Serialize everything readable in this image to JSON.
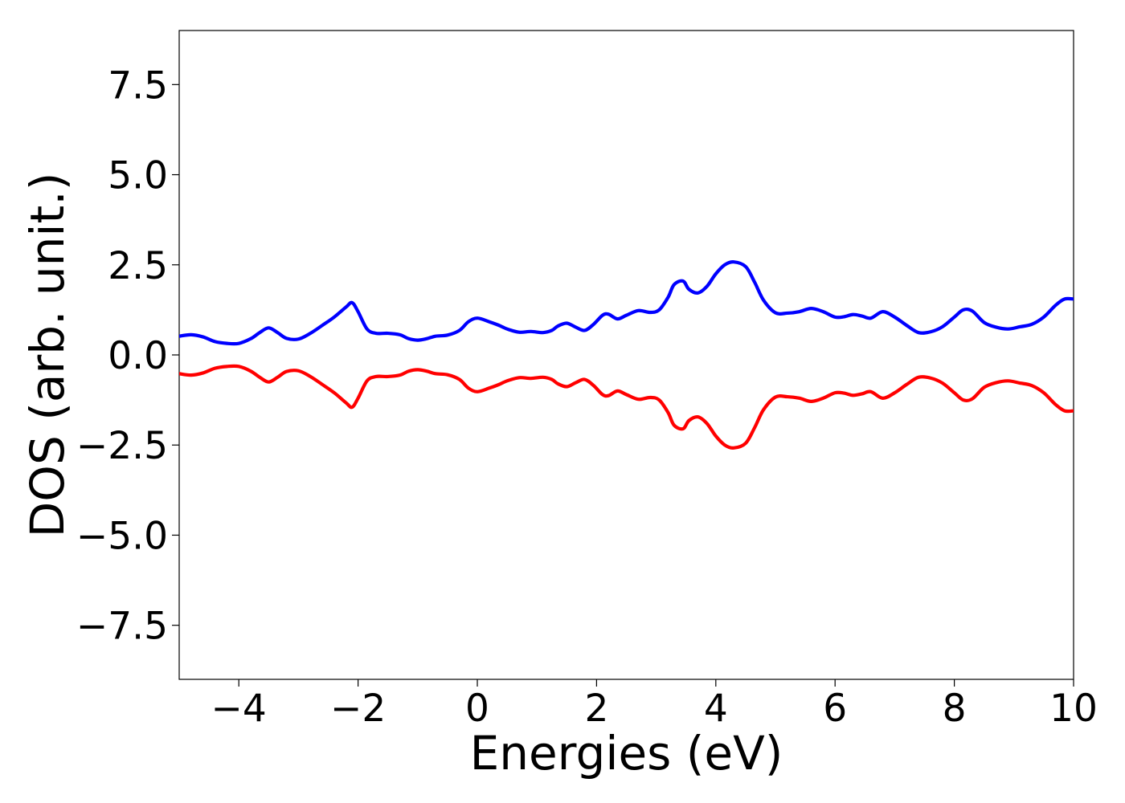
{
  "chart_data": {
    "type": "line",
    "title": "",
    "xlabel": "Energies (eV)",
    "ylabel": "DOS (arb. unit.)",
    "xlim": [
      -5,
      10
    ],
    "ylim": [
      -9,
      9
    ],
    "xticks": [
      -4,
      -2,
      0,
      2,
      4,
      6,
      8,
      10
    ],
    "xtick_labels": [
      "−4",
      "−2",
      "0",
      "2",
      "4",
      "6",
      "8",
      "10"
    ],
    "yticks": [
      -7.5,
      -5.0,
      -2.5,
      0.0,
      2.5,
      5.0,
      7.5
    ],
    "ytick_labels": [
      "−7.5",
      "−5.0",
      "−2.5",
      "0.0",
      "2.5",
      "5.0",
      "7.5"
    ],
    "grid": false,
    "legend": "none",
    "series": [
      {
        "color": "#0000ff",
        "x": [
          -5.0,
          -4.8,
          -4.6,
          -4.4,
          -4.2,
          -4.0,
          -3.8,
          -3.65,
          -3.5,
          -3.35,
          -3.2,
          -3.0,
          -2.8,
          -2.6,
          -2.4,
          -2.2,
          -2.1,
          -2.0,
          -1.85,
          -1.7,
          -1.5,
          -1.3,
          -1.15,
          -1.0,
          -0.85,
          -0.7,
          -0.5,
          -0.3,
          -0.15,
          0.0,
          0.2,
          0.35,
          0.5,
          0.7,
          0.9,
          1.1,
          1.25,
          1.35,
          1.5,
          1.65,
          1.8,
          1.95,
          2.1,
          2.2,
          2.35,
          2.5,
          2.7,
          2.9,
          3.05,
          3.2,
          3.3,
          3.45,
          3.55,
          3.7,
          3.85,
          4.0,
          4.15,
          4.3,
          4.5,
          4.65,
          4.8,
          5.0,
          5.2,
          5.4,
          5.6,
          5.8,
          6.0,
          6.15,
          6.3,
          6.45,
          6.6,
          6.8,
          7.0,
          7.2,
          7.4,
          7.6,
          7.8,
          8.0,
          8.15,
          8.3,
          8.5,
          8.7,
          8.9,
          9.1,
          9.3,
          9.5,
          9.7,
          9.85,
          10.0
        ],
        "y": [
          0.52,
          0.56,
          0.5,
          0.37,
          0.32,
          0.32,
          0.45,
          0.62,
          0.75,
          0.62,
          0.46,
          0.44,
          0.6,
          0.82,
          1.05,
          1.33,
          1.45,
          1.2,
          0.72,
          0.6,
          0.6,
          0.56,
          0.45,
          0.41,
          0.45,
          0.52,
          0.55,
          0.68,
          0.92,
          1.02,
          0.92,
          0.83,
          0.72,
          0.63,
          0.65,
          0.62,
          0.68,
          0.8,
          0.88,
          0.77,
          0.68,
          0.85,
          1.1,
          1.13,
          1.0,
          1.1,
          1.23,
          1.18,
          1.25,
          1.6,
          1.95,
          2.05,
          1.82,
          1.72,
          1.9,
          2.25,
          2.5,
          2.58,
          2.45,
          2.02,
          1.52,
          1.17,
          1.16,
          1.2,
          1.29,
          1.2,
          1.05,
          1.06,
          1.12,
          1.08,
          1.02,
          1.2,
          1.05,
          0.82,
          0.62,
          0.64,
          0.78,
          1.05,
          1.25,
          1.22,
          0.9,
          0.77,
          0.72,
          0.78,
          0.85,
          1.05,
          1.38,
          1.55,
          1.55
        ]
      },
      {
        "color": "#ff0000",
        "x": [
          -5.0,
          -4.8,
          -4.6,
          -4.4,
          -4.2,
          -4.0,
          -3.8,
          -3.65,
          -3.5,
          -3.35,
          -3.2,
          -3.0,
          -2.8,
          -2.6,
          -2.4,
          -2.2,
          -2.1,
          -2.0,
          -1.85,
          -1.7,
          -1.5,
          -1.3,
          -1.15,
          -1.0,
          -0.85,
          -0.7,
          -0.5,
          -0.3,
          -0.15,
          0.0,
          0.2,
          0.35,
          0.5,
          0.7,
          0.9,
          1.1,
          1.25,
          1.35,
          1.5,
          1.65,
          1.8,
          1.95,
          2.1,
          2.2,
          2.35,
          2.5,
          2.7,
          2.9,
          3.05,
          3.2,
          3.3,
          3.45,
          3.55,
          3.7,
          3.85,
          4.0,
          4.15,
          4.3,
          4.5,
          4.65,
          4.8,
          5.0,
          5.2,
          5.4,
          5.6,
          5.8,
          6.0,
          6.15,
          6.3,
          6.45,
          6.6,
          6.8,
          7.0,
          7.2,
          7.4,
          7.6,
          7.8,
          8.0,
          8.15,
          8.3,
          8.5,
          8.7,
          8.9,
          9.1,
          9.3,
          9.5,
          9.7,
          9.85,
          10.0
        ],
        "y": [
          -0.52,
          -0.56,
          -0.5,
          -0.37,
          -0.32,
          -0.32,
          -0.45,
          -0.62,
          -0.75,
          -0.62,
          -0.46,
          -0.44,
          -0.6,
          -0.82,
          -1.05,
          -1.33,
          -1.45,
          -1.2,
          -0.72,
          -0.6,
          -0.6,
          -0.56,
          -0.45,
          -0.41,
          -0.45,
          -0.52,
          -0.55,
          -0.68,
          -0.92,
          -1.02,
          -0.92,
          -0.83,
          -0.72,
          -0.63,
          -0.65,
          -0.62,
          -0.68,
          -0.8,
          -0.88,
          -0.77,
          -0.68,
          -0.85,
          -1.1,
          -1.13,
          -1.0,
          -1.1,
          -1.23,
          -1.18,
          -1.25,
          -1.6,
          -1.95,
          -2.05,
          -1.82,
          -1.72,
          -1.9,
          -2.25,
          -2.5,
          -2.58,
          -2.45,
          -2.02,
          -1.52,
          -1.17,
          -1.16,
          -1.2,
          -1.29,
          -1.2,
          -1.05,
          -1.06,
          -1.12,
          -1.08,
          -1.02,
          -1.2,
          -1.05,
          -0.82,
          -0.62,
          -0.64,
          -0.78,
          -1.05,
          -1.25,
          -1.22,
          -0.9,
          -0.77,
          -0.72,
          -0.78,
          -0.85,
          -1.05,
          -1.38,
          -1.55,
          -1.55
        ]
      }
    ]
  }
}
